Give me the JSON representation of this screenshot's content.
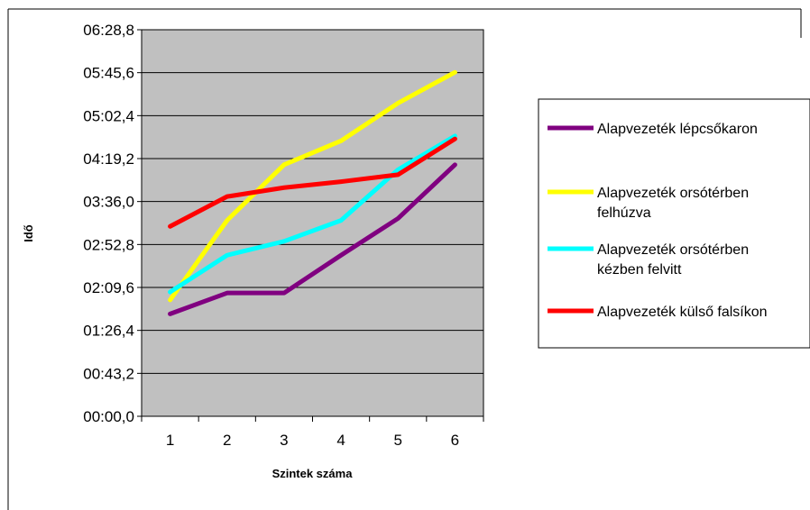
{
  "chart_data": {
    "type": "line",
    "title": "",
    "xlabel": "Szintek száma",
    "ylabel": "Idő",
    "categories": [
      "1",
      "2",
      "3",
      "4",
      "5",
      "6"
    ],
    "y_tick_labels": [
      "00:00,0",
      "00:43,2",
      "01:26,4",
      "02:09,6",
      "02:52,8",
      "03:36,0",
      "04:19,2",
      "05:02,4",
      "05:45,6",
      "06:28,8"
    ],
    "y_unit_seconds_per_tick": 43.2,
    "ylim_seconds": [
      0,
      388.8
    ],
    "grid": true,
    "legend_position": "right",
    "series": [
      {
        "name": "Alapvezeték lépcsőkaron",
        "color": "#800080",
        "values_seconds": [
          103,
          124,
          124,
          162,
          199,
          253
        ]
      },
      {
        "name": "Alapvezeték orsótérben felhúzva",
        "color": "#ffff00",
        "values_seconds": [
          117,
          197,
          253,
          277,
          315,
          346
        ]
      },
      {
        "name": "Alapvezeték orsótérben kézben felvitt",
        "color": "#00ffff",
        "values_seconds": [
          125,
          162,
          176,
          197,
          248,
          282
        ]
      },
      {
        "name": "Alapvezeték külső falsíkon",
        "color": "#ff0000",
        "values_seconds": [
          191,
          221,
          230,
          236,
          243,
          279
        ]
      }
    ],
    "plot_background": "#c0c0c0"
  }
}
